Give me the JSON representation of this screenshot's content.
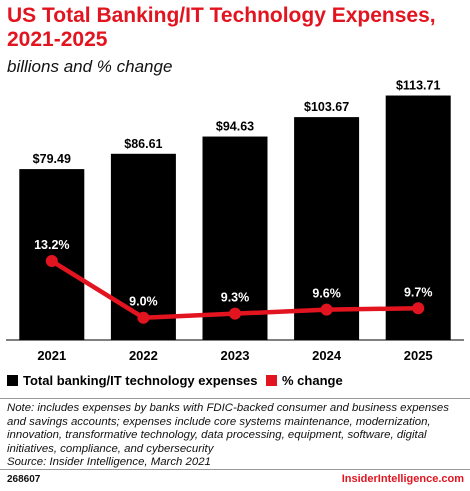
{
  "chart_data": {
    "type": "bar",
    "title": "US Total Banking/IT Technology Expenses, 2021-2025",
    "subtitle": "billions and % change",
    "categories": [
      "2021",
      "2022",
      "2023",
      "2024",
      "2025"
    ],
    "series": [
      {
        "name": "Total banking/IT technology expenses",
        "type": "bar",
        "values": [
          79.49,
          86.61,
          94.63,
          103.67,
          113.71
        ],
        "labels": [
          "$79.49",
          "$86.61",
          "$94.63",
          "$103.67",
          "$113.71"
        ],
        "color": "#000000"
      },
      {
        "name": "% change",
        "type": "line",
        "values": [
          13.2,
          9.0,
          9.3,
          9.6,
          9.7
        ],
        "labels": [
          "13.2%",
          "9.0%",
          "9.3%",
          "9.6%",
          "9.7%"
        ],
        "color": "#e2141f"
      }
    ],
    "legend_position": "bottom-left"
  },
  "note": "Note: includes expenses by banks with FDIC-backed consumer and business expenses and savings accounts; expenses include core systems maintenance, modernization, innovation, transformative technology, data processing, equipment, software, digital initiatives, compliance, and cybersecurity",
  "source": "Source: Insider Intelligence, March 2021",
  "footer": {
    "chart_id": "268607",
    "brand": "InsiderIntelligence.com"
  }
}
